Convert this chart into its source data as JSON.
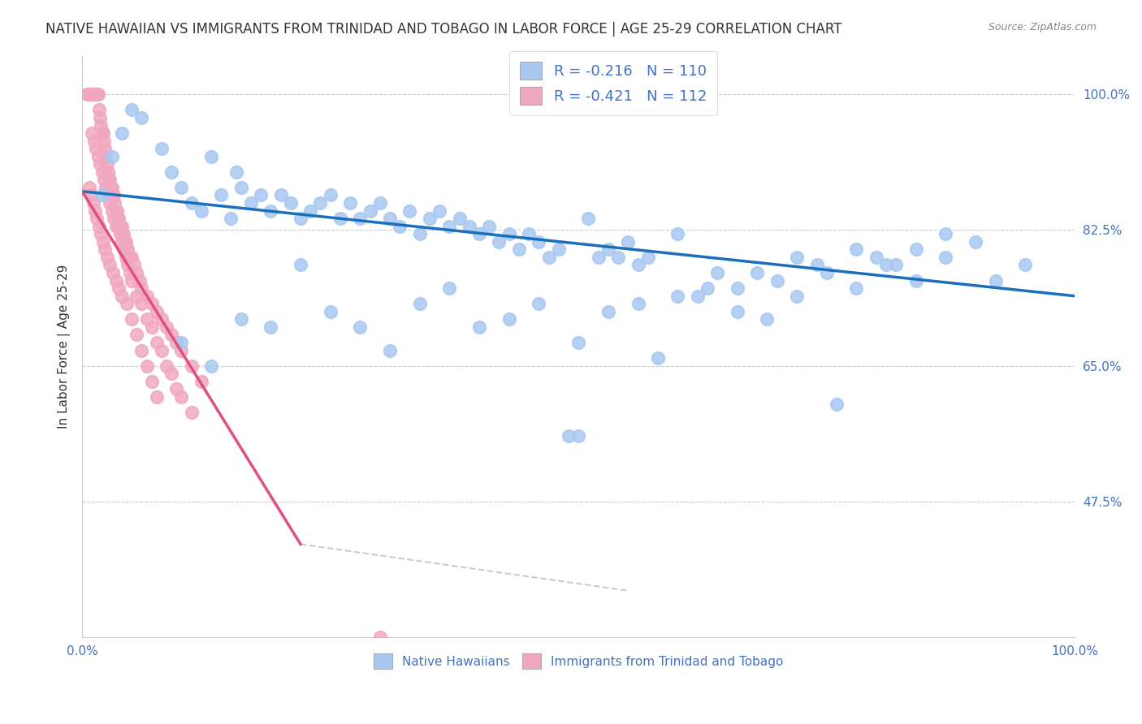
{
  "title": "NATIVE HAWAIIAN VS IMMIGRANTS FROM TRINIDAD AND TOBAGO IN LABOR FORCE | AGE 25-29 CORRELATION CHART",
  "source": "Source: ZipAtlas.com",
  "ylabel": "In Labor Force | Age 25-29",
  "xlim": [
    0.0,
    1.0
  ],
  "ylim": [
    0.3,
    1.05
  ],
  "yticks": [
    0.475,
    0.65,
    0.825,
    1.0
  ],
  "ytick_labels": [
    "47.5%",
    "65.0%",
    "82.5%",
    "100.0%"
  ],
  "blue_R": "-0.216",
  "blue_N": "110",
  "pink_R": "-0.421",
  "pink_N": "112",
  "blue_color": "#a8c8f0",
  "pink_color": "#f0a8c0",
  "blue_line_color": "#1a6fbd",
  "pink_line_color": "#e0507a",
  "axis_color": "#4472c4",
  "blue_scatter_x": [
    0.02,
    0.03,
    0.04,
    0.05,
    0.06,
    0.08,
    0.09,
    0.1,
    0.11,
    0.12,
    0.13,
    0.14,
    0.15,
    0.155,
    0.16,
    0.17,
    0.18,
    0.19,
    0.2,
    0.21,
    0.22,
    0.23,
    0.24,
    0.25,
    0.26,
    0.27,
    0.28,
    0.29,
    0.3,
    0.31,
    0.32,
    0.33,
    0.34,
    0.35,
    0.36,
    0.37,
    0.38,
    0.39,
    0.4,
    0.41,
    0.42,
    0.43,
    0.44,
    0.45,
    0.46,
    0.47,
    0.48,
    0.49,
    0.5,
    0.51,
    0.52,
    0.53,
    0.54,
    0.55,
    0.56,
    0.57,
    0.58,
    0.6,
    0.62,
    0.64,
    0.66,
    0.68,
    0.7,
    0.72,
    0.74,
    0.76,
    0.78,
    0.8,
    0.82,
    0.84,
    0.87,
    0.9,
    0.95,
    0.1,
    0.13,
    0.16,
    0.19,
    0.22,
    0.25,
    0.28,
    0.31,
    0.34,
    0.37,
    0.4,
    0.43,
    0.46,
    0.5,
    0.53,
    0.56,
    0.6,
    0.63,
    0.66,
    0.69,
    0.72,
    0.75,
    0.78,
    0.81,
    0.84,
    0.87,
    0.92
  ],
  "blue_scatter_y": [
    0.87,
    0.92,
    0.95,
    0.98,
    0.97,
    0.93,
    0.9,
    0.88,
    0.86,
    0.85,
    0.92,
    0.87,
    0.84,
    0.9,
    0.88,
    0.86,
    0.87,
    0.85,
    0.87,
    0.86,
    0.84,
    0.85,
    0.86,
    0.87,
    0.84,
    0.86,
    0.84,
    0.85,
    0.86,
    0.84,
    0.83,
    0.85,
    0.82,
    0.84,
    0.85,
    0.83,
    0.84,
    0.83,
    0.82,
    0.83,
    0.81,
    0.82,
    0.8,
    0.82,
    0.81,
    0.79,
    0.8,
    0.56,
    0.56,
    0.84,
    0.79,
    0.8,
    0.79,
    0.81,
    0.78,
    0.79,
    0.66,
    0.82,
    0.74,
    0.77,
    0.75,
    0.77,
    0.76,
    0.79,
    0.78,
    0.6,
    0.8,
    0.79,
    0.78,
    0.76,
    0.79,
    0.81,
    0.78,
    0.68,
    0.65,
    0.71,
    0.7,
    0.78,
    0.72,
    0.7,
    0.67,
    0.73,
    0.75,
    0.7,
    0.71,
    0.73,
    0.68,
    0.72,
    0.73,
    0.74,
    0.75,
    0.72,
    0.71,
    0.74,
    0.77,
    0.75,
    0.78,
    0.8,
    0.82,
    0.76
  ],
  "pink_scatter_x": [
    0.005,
    0.007,
    0.008,
    0.009,
    0.01,
    0.011,
    0.012,
    0.013,
    0.014,
    0.015,
    0.016,
    0.017,
    0.018,
    0.019,
    0.02,
    0.021,
    0.022,
    0.023,
    0.024,
    0.025,
    0.026,
    0.027,
    0.028,
    0.029,
    0.03,
    0.031,
    0.032,
    0.033,
    0.034,
    0.035,
    0.036,
    0.037,
    0.038,
    0.039,
    0.04,
    0.041,
    0.042,
    0.043,
    0.044,
    0.045,
    0.046,
    0.048,
    0.05,
    0.052,
    0.055,
    0.058,
    0.06,
    0.065,
    0.07,
    0.075,
    0.08,
    0.085,
    0.09,
    0.095,
    0.1,
    0.11,
    0.12,
    0.01,
    0.012,
    0.014,
    0.016,
    0.018,
    0.02,
    0.022,
    0.024,
    0.026,
    0.028,
    0.03,
    0.032,
    0.034,
    0.036,
    0.038,
    0.04,
    0.042,
    0.044,
    0.046,
    0.048,
    0.05,
    0.055,
    0.06,
    0.065,
    0.07,
    0.075,
    0.08,
    0.085,
    0.09,
    0.095,
    0.1,
    0.11,
    0.3,
    0.007,
    0.009,
    0.011,
    0.013,
    0.015,
    0.017,
    0.019,
    0.021,
    0.023,
    0.025,
    0.028,
    0.031,
    0.034,
    0.037,
    0.04,
    0.045,
    0.05,
    0.055,
    0.06,
    0.065,
    0.07,
    0.075
  ],
  "pink_scatter_y": [
    1.0,
    1.0,
    1.0,
    1.0,
    1.0,
    1.0,
    1.0,
    1.0,
    1.0,
    1.0,
    1.0,
    0.98,
    0.97,
    0.96,
    0.95,
    0.95,
    0.94,
    0.93,
    0.92,
    0.91,
    0.9,
    0.89,
    0.89,
    0.88,
    0.88,
    0.87,
    0.87,
    0.86,
    0.85,
    0.85,
    0.84,
    0.84,
    0.83,
    0.83,
    0.83,
    0.82,
    0.82,
    0.81,
    0.81,
    0.8,
    0.8,
    0.79,
    0.79,
    0.78,
    0.77,
    0.76,
    0.75,
    0.74,
    0.73,
    0.72,
    0.71,
    0.7,
    0.69,
    0.68,
    0.67,
    0.65,
    0.63,
    0.95,
    0.94,
    0.93,
    0.92,
    0.91,
    0.9,
    0.89,
    0.88,
    0.87,
    0.86,
    0.85,
    0.84,
    0.83,
    0.83,
    0.82,
    0.81,
    0.8,
    0.79,
    0.78,
    0.77,
    0.76,
    0.74,
    0.73,
    0.71,
    0.7,
    0.68,
    0.67,
    0.65,
    0.64,
    0.62,
    0.61,
    0.59,
    0.3,
    0.88,
    0.87,
    0.86,
    0.85,
    0.84,
    0.83,
    0.82,
    0.81,
    0.8,
    0.79,
    0.78,
    0.77,
    0.76,
    0.75,
    0.74,
    0.73,
    0.71,
    0.69,
    0.67,
    0.65,
    0.63,
    0.61
  ],
  "blue_trend_x": [
    0.0,
    1.0
  ],
  "blue_trend_y_start": 0.875,
  "blue_trend_y_end": 0.74,
  "pink_trend_x": [
    0.0,
    0.22
  ],
  "pink_trend_y_start": 0.875,
  "pink_trend_y_end": 0.42,
  "dashed_line_x": [
    0.22,
    0.55
  ],
  "dashed_line_y": [
    0.42,
    0.36
  ]
}
